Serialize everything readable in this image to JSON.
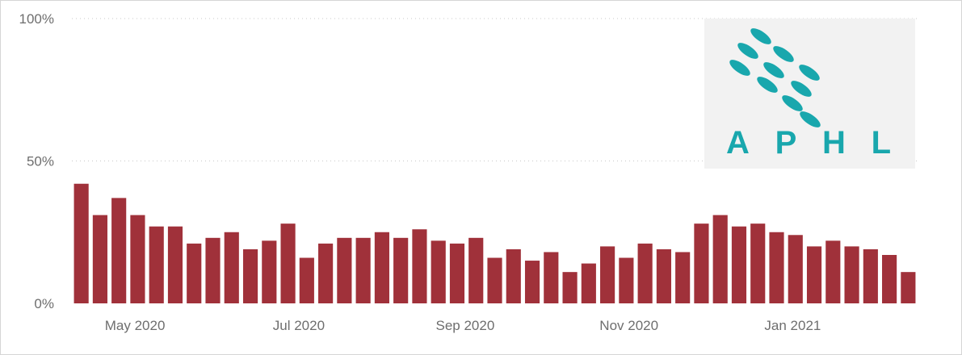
{
  "colors": {
    "bar": "#a0313a",
    "grid": "#c8c8c8",
    "tick_text": "#6e6e6e",
    "logo_teal": "#19a7ad",
    "logo_bg": "#f2f2f2"
  },
  "logo": {
    "text": "APHL",
    "icon": "aphl-oval-dots-logo"
  },
  "chart_data": {
    "type": "bar",
    "title": "",
    "xlabel": "",
    "ylabel": "",
    "ylim": [
      0,
      100
    ],
    "y_ticks": [
      "0%",
      "50%",
      "100%"
    ],
    "y_tick_values": [
      0,
      50,
      100
    ],
    "grid": "dotted horizontal",
    "x_tick_labels": [
      {
        "label": "May 2020",
        "date": "2020-05-01"
      },
      {
        "label": "Jul 2020",
        "date": "2020-07-01"
      },
      {
        "label": "Sep 2020",
        "date": "2020-09-01"
      },
      {
        "label": "Nov 2020",
        "date": "2020-11-01"
      },
      {
        "label": "Jan 2021",
        "date": "2021-01-01"
      }
    ],
    "x": [
      "2020-04-11",
      "2020-04-18",
      "2020-04-25",
      "2020-05-02",
      "2020-05-09",
      "2020-05-16",
      "2020-05-23",
      "2020-05-30",
      "2020-06-06",
      "2020-06-13",
      "2020-06-20",
      "2020-06-27",
      "2020-07-04",
      "2020-07-11",
      "2020-07-18",
      "2020-07-25",
      "2020-08-01",
      "2020-08-08",
      "2020-08-15",
      "2020-08-22",
      "2020-08-29",
      "2020-09-05",
      "2020-09-12",
      "2020-09-19",
      "2020-09-26",
      "2020-10-03",
      "2020-10-10",
      "2020-10-17",
      "2020-10-24",
      "2020-10-31",
      "2020-11-07",
      "2020-11-14",
      "2020-11-21",
      "2020-11-28",
      "2020-12-05",
      "2020-12-12",
      "2020-12-19",
      "2020-12-26",
      "2021-01-02",
      "2021-01-09",
      "2021-01-16",
      "2021-01-23",
      "2021-01-30",
      "2021-02-06",
      "2021-02-13"
    ],
    "values": [
      42,
      31,
      37,
      31,
      27,
      27,
      21,
      23,
      25,
      19,
      22,
      28,
      16,
      21,
      23,
      23,
      25,
      23,
      26,
      22,
      21,
      23,
      16,
      19,
      15,
      18,
      11,
      14,
      20,
      16,
      21,
      19,
      18,
      28,
      31,
      27,
      28,
      25,
      24,
      20,
      22,
      20,
      19,
      17,
      11
    ]
  }
}
